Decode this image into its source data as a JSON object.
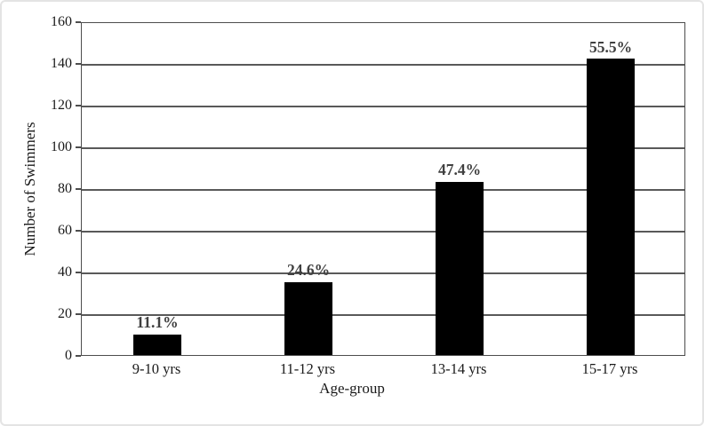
{
  "chart_data": {
    "type": "bar",
    "title": "",
    "xlabel": "Age-group",
    "ylabel": "Number of Swimmers",
    "categories": [
      "9-10 yrs",
      "11-12 yrs",
      "13-14 yrs",
      "15-17 yrs"
    ],
    "values": [
      10,
      35,
      83,
      142
    ],
    "bar_labels": [
      "11.1%",
      "24.6%",
      "47.4%",
      "55.5%"
    ],
    "ylim": [
      0,
      160
    ],
    "yticks": [
      0,
      20,
      40,
      60,
      80,
      100,
      120,
      140,
      160
    ],
    "grid": "horizontal",
    "legend_position": "none",
    "bar_color": "#000000",
    "bar_label_color": "#404040",
    "axis_line_color": "#4d4d4d",
    "gridline_color": "#595959",
    "text_color": "#1a1a1a",
    "frame_border_color": "#e4e4e4",
    "background_color": "#ffffff"
  }
}
